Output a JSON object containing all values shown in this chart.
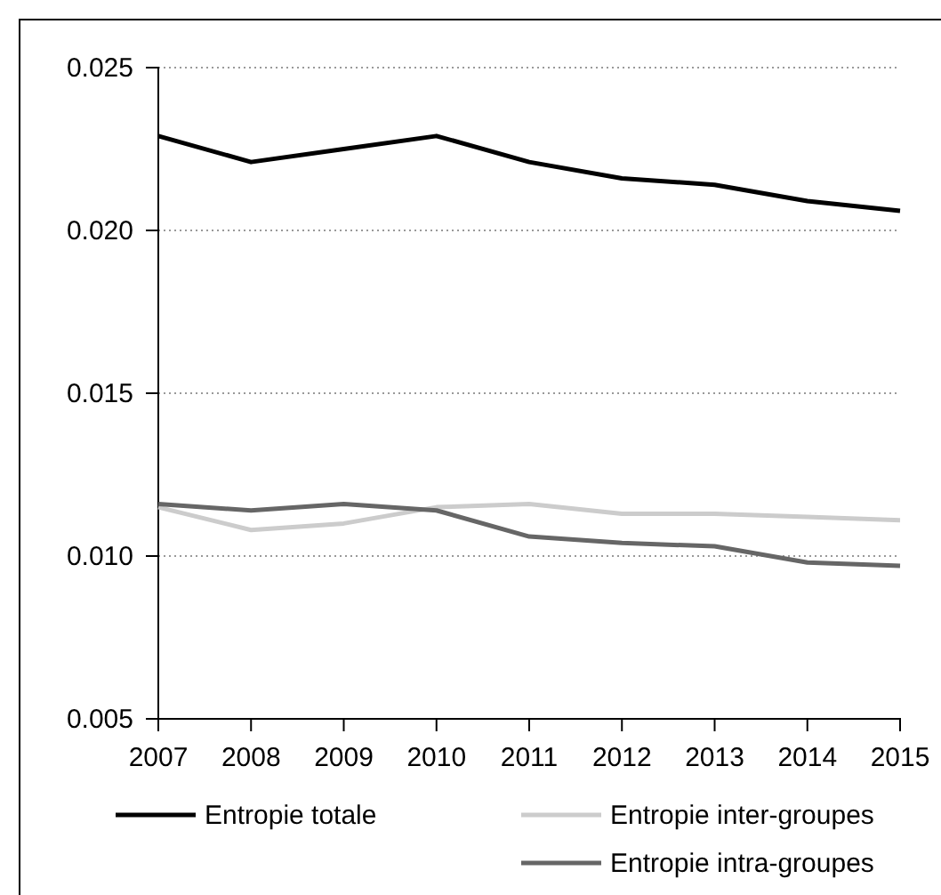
{
  "chart_data": {
    "type": "line",
    "x": [
      2007,
      2008,
      2009,
      2010,
      2011,
      2012,
      2013,
      2014,
      2015
    ],
    "xlim": [
      2007,
      2015
    ],
    "xticks": [
      2007,
      2008,
      2009,
      2010,
      2011,
      2012,
      2013,
      2014,
      2015
    ],
    "ylim": [
      0.005,
      0.025
    ],
    "yticks": [
      {
        "value": 0.005,
        "label": "0.005"
      },
      {
        "value": 0.01,
        "label": "0.010"
      },
      {
        "value": 0.015,
        "label": "0.015"
      },
      {
        "value": 0.02,
        "label": "0.020"
      },
      {
        "value": 0.025,
        "label": "0.025"
      }
    ],
    "grid": "y",
    "legend": "bottom",
    "line_style": "solid",
    "marker": "none",
    "series": [
      {
        "name": "Entropie totale",
        "color": "#000000",
        "values": [
          0.0229,
          0.0221,
          0.0225,
          0.0229,
          0.0221,
          0.0216,
          0.0214,
          0.0209,
          0.0206
        ]
      },
      {
        "name": "Entropie inter-groupes",
        "color": "#cccccc",
        "values": [
          0.0115,
          0.0108,
          0.011,
          0.0115,
          0.0116,
          0.0113,
          0.0113,
          0.0112,
          0.0111
        ]
      },
      {
        "name": "Entropie intra-groupes",
        "color": "#666666",
        "values": [
          0.0116,
          0.0114,
          0.0116,
          0.0114,
          0.0106,
          0.0104,
          0.0103,
          0.0098,
          0.0097
        ]
      }
    ]
  }
}
